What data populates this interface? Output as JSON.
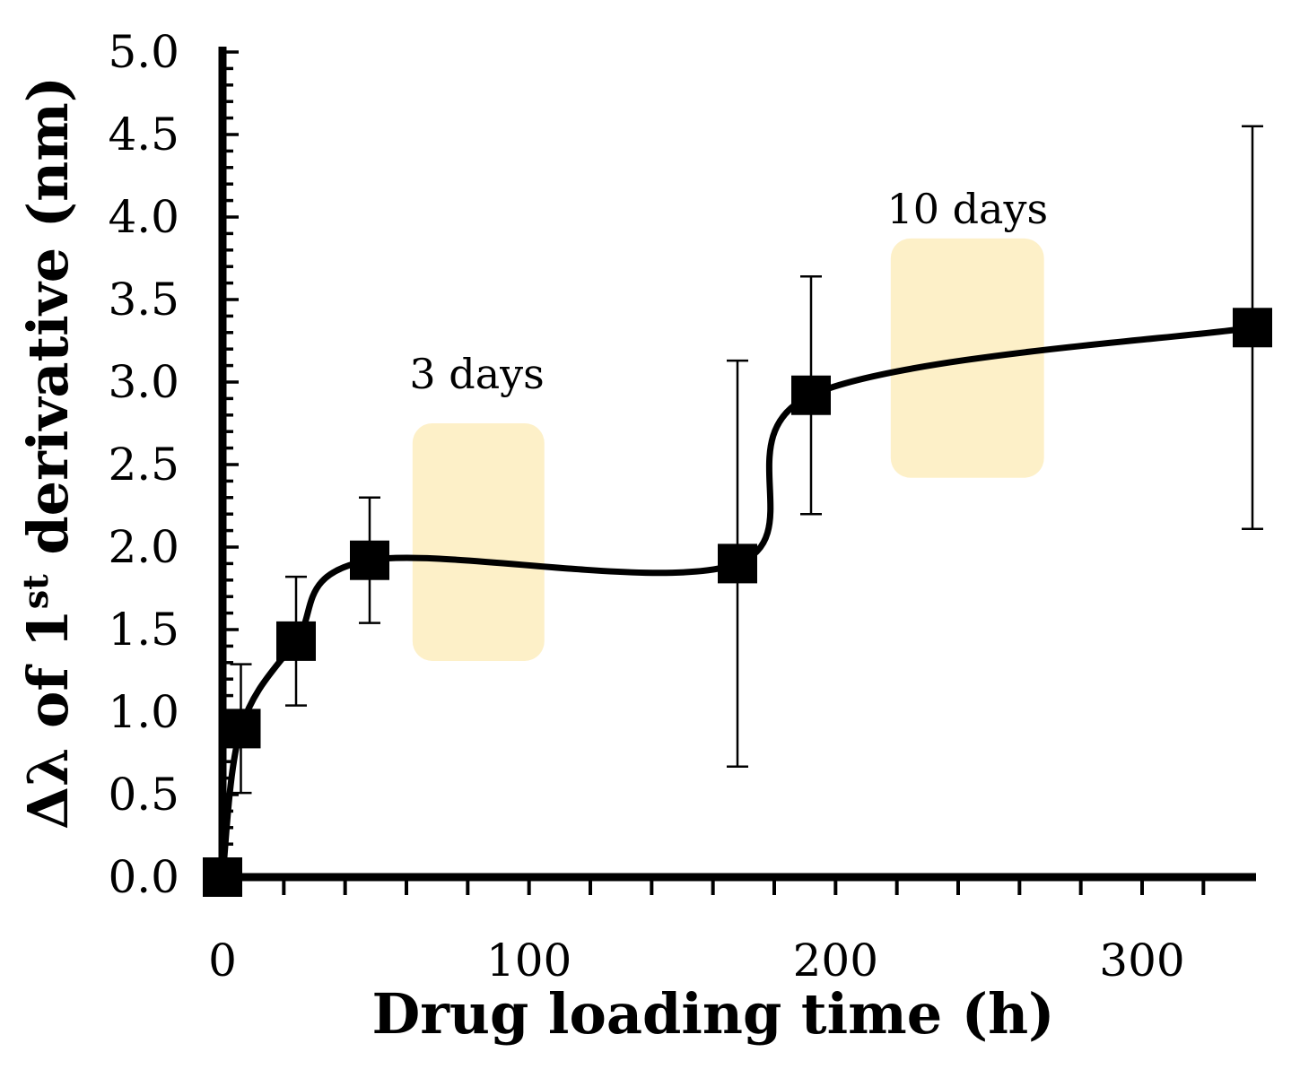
{
  "chart_data": {
    "type": "line",
    "title": "",
    "xlabel": "Drug loading time (h)",
    "ylabel_main": "Δλ of 1",
    "ylabel_sup": "st",
    "ylabel_tail": " derivative (nm)",
    "xlim": [
      0,
      336
    ],
    "ylim": [
      0,
      5
    ],
    "x_ticks": [
      0,
      100,
      200,
      300
    ],
    "x_tick_labels": [
      "0",
      "100",
      "200",
      "300"
    ],
    "y_ticks": [
      0,
      0.5,
      1,
      1.5,
      2,
      2.5,
      3,
      3.5,
      4,
      4.5,
      5
    ],
    "y_tick_labels": [
      "0.0",
      "0.5",
      "1.0",
      "1.5",
      "2.0",
      "2.5",
      "3.0",
      "3.5",
      "4.0",
      "4.5",
      "5.0"
    ],
    "series": [
      {
        "name": "Δλ",
        "x": [
          0,
          6,
          24,
          48,
          168,
          192,
          336
        ],
        "y": [
          0.0,
          0.9,
          1.43,
          1.92,
          1.9,
          2.92,
          3.33
        ],
        "err": [
          0,
          0.39,
          0.39,
          0.38,
          1.23,
          0.72,
          1.22
        ]
      }
    ],
    "annotations": [
      {
        "text": "3 days",
        "x_range": [
          62,
          105
        ],
        "y_range": [
          1.31,
          2.75
        ],
        "text_x": 83,
        "text_y": 3.05
      },
      {
        "text": "10 days",
        "x_range": [
          218,
          268
        ],
        "y_range": [
          2.42,
          3.87
        ],
        "text_x": 243,
        "text_y": 4.05
      }
    ],
    "colors": {
      "line": "#000000",
      "highlight": "#fdf0c8"
    }
  }
}
